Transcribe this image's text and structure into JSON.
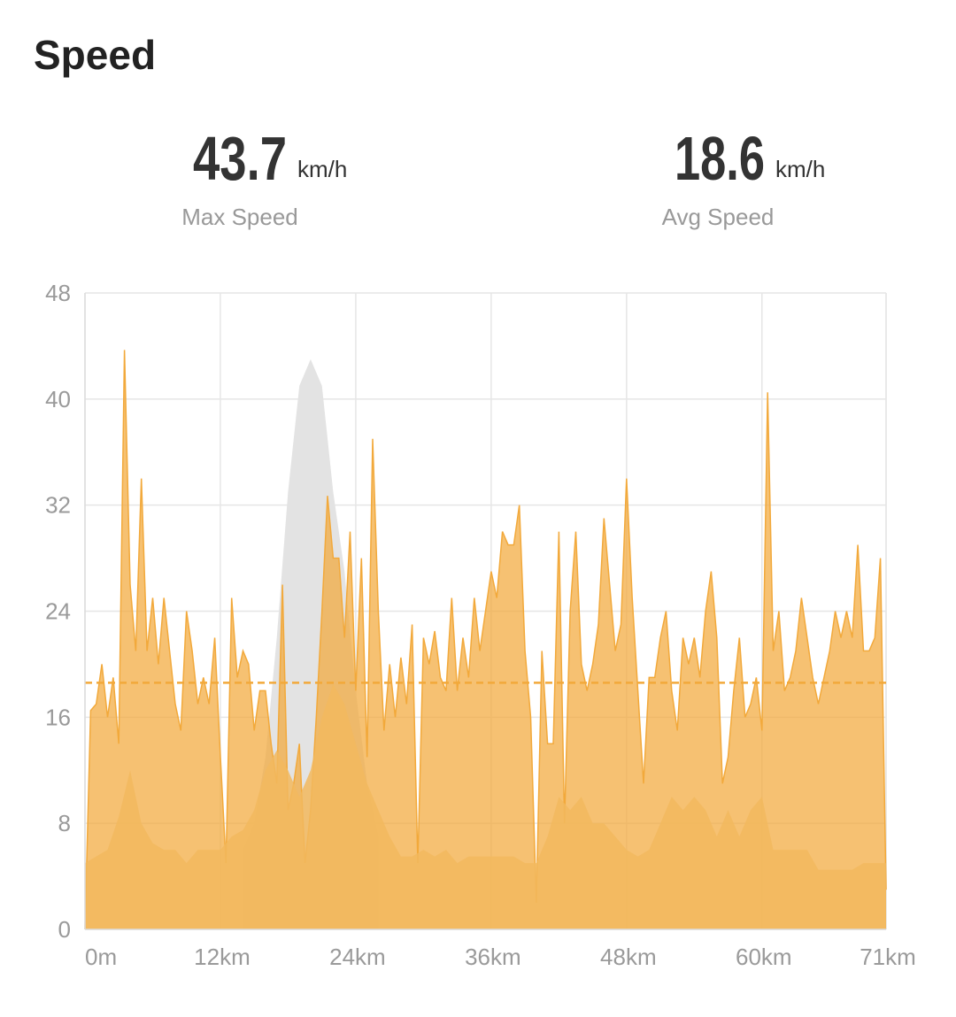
{
  "title": "Speed",
  "stats": [
    {
      "value": 43.7,
      "unit": "km/h",
      "label": "Max Speed"
    },
    {
      "value": 18.6,
      "unit": "km/h",
      "label": "Avg Speed"
    }
  ],
  "chart_data": {
    "type": "area",
    "xlim": [
      0,
      71
    ],
    "xticks": [
      {
        "value": 0,
        "label": "0m"
      },
      {
        "value": 12,
        "label": "12km"
      },
      {
        "value": 24,
        "label": "24km"
      },
      {
        "value": 36,
        "label": "36km"
      },
      {
        "value": 48,
        "label": "48km"
      },
      {
        "value": 60,
        "label": "60km"
      },
      {
        "value": 71,
        "label": "71km"
      }
    ],
    "ylim": [
      0,
      48
    ],
    "yticks": [
      0,
      8,
      16,
      24,
      32,
      40,
      48
    ],
    "grid": true,
    "series": [
      {
        "color": "#e3e3e3",
        "x": [
          14,
          15,
          16,
          17,
          18,
          19,
          20,
          21,
          22,
          23,
          24,
          25,
          26
        ],
        "values": [
          6,
          8,
          13,
          22,
          33,
          41,
          43,
          41,
          33,
          27,
          18,
          11,
          7
        ]
      },
      {
        "color": "#f2a93b",
        "x": [
          0,
          0.5,
          1,
          1.5,
          2,
          2.5,
          3,
          3.5,
          4,
          4.5,
          5,
          5.5,
          6,
          6.5,
          7,
          7.5,
          8,
          8.5,
          9,
          9.5,
          10,
          10.5,
          11,
          11.5,
          12,
          12.5,
          13,
          13.5,
          14,
          14.5,
          15,
          15.5,
          16,
          16.5,
          17,
          17.5,
          18,
          18.5,
          19,
          19.5,
          20,
          20.5,
          21,
          21.5,
          22,
          22.5,
          23,
          23.5,
          24,
          24.5,
          25,
          25.5,
          26,
          26.5,
          27,
          27.5,
          28,
          28.5,
          29,
          29.5,
          30,
          30.5,
          31,
          31.5,
          32,
          32.5,
          33,
          33.5,
          34,
          34.5,
          35,
          35.5,
          36,
          36.5,
          37,
          37.5,
          38,
          38.5,
          39,
          39.5,
          40,
          40.5,
          41,
          41.5,
          42,
          42.5,
          43,
          43.5,
          44,
          44.5,
          45,
          45.5,
          46,
          46.5,
          47,
          47.5,
          48,
          48.5,
          49,
          49.5,
          50,
          50.5,
          51,
          51.5,
          52,
          52.5,
          53,
          53.5,
          54,
          54.5,
          55,
          55.5,
          56,
          56.5,
          57,
          57.5,
          58,
          58.5,
          59,
          59.5,
          60,
          60.5,
          61,
          61.5,
          62,
          62.5,
          63,
          63.5,
          64,
          64.5,
          65,
          65.5,
          66,
          66.5,
          67,
          67.5,
          68,
          68.5,
          69,
          69.5,
          70,
          70.5,
          71
        ],
        "values": [
          0,
          16.5,
          17,
          20,
          16,
          19,
          14,
          43.7,
          26,
          21,
          34,
          21,
          25,
          20,
          25,
          21,
          17,
          15,
          24,
          21,
          17,
          19,
          17,
          22,
          13,
          5,
          25,
          19,
          21,
          20,
          15,
          18,
          18,
          14,
          11,
          26,
          9,
          11,
          14,
          5,
          9,
          16,
          24,
          32.7,
          28,
          28,
          22,
          30,
          18,
          28,
          13,
          37,
          24,
          15,
          20,
          16,
          20.5,
          17,
          23,
          5,
          22,
          20,
          22.5,
          19,
          18,
          25,
          18,
          22,
          19,
          25,
          21,
          24,
          27,
          25,
          30,
          29,
          29,
          32,
          21,
          16,
          2,
          21,
          14,
          14,
          30,
          8,
          24,
          30,
          20,
          18,
          20,
          23,
          31,
          26,
          21,
          23,
          34,
          25,
          18,
          11,
          19,
          19,
          22,
          24,
          18,
          15,
          22,
          20,
          22,
          19,
          24,
          27,
          22,
          11,
          13,
          18,
          22,
          16,
          17,
          19,
          15,
          40.5,
          21,
          24,
          18,
          19,
          21,
          25,
          22,
          19,
          17,
          19,
          21,
          24,
          22,
          24,
          22,
          29,
          21,
          21,
          22,
          28,
          3
        ]
      },
      {
        "color": "#f2b95e",
        "x": [
          0,
          1,
          2,
          3,
          4,
          5,
          6,
          7,
          8,
          9,
          10,
          11,
          12,
          13,
          14,
          15,
          16,
          17,
          18,
          19,
          20,
          21,
          22,
          23,
          24,
          25,
          26,
          27,
          28,
          29,
          30,
          31,
          32,
          33,
          34,
          35,
          36,
          37,
          38,
          39,
          40,
          41,
          42,
          43,
          44,
          45,
          46,
          47,
          48,
          49,
          50,
          51,
          52,
          53,
          54,
          55,
          56,
          57,
          58,
          59,
          60,
          61,
          62,
          63,
          64,
          65,
          66,
          67,
          68,
          69,
          70,
          71
        ],
        "values": [
          5,
          5.5,
          6,
          8.5,
          12,
          8,
          6.5,
          6,
          6,
          5,
          6,
          6,
          6,
          7,
          7.5,
          9,
          12,
          13.5,
          12,
          10,
          12,
          16,
          18.5,
          17,
          14,
          11,
          9,
          7,
          5.5,
          5.5,
          6,
          5.5,
          6,
          5,
          5.5,
          5.5,
          5.5,
          5.5,
          5.5,
          5,
          5,
          7,
          10,
          9,
          10,
          8,
          8,
          7,
          6,
          5.5,
          6,
          8,
          10,
          9,
          10,
          9,
          7,
          9,
          7,
          9,
          10,
          6,
          6,
          6,
          6,
          4.5,
          4.5,
          4.5,
          4.5,
          5,
          5,
          5
        ]
      }
    ]
  }
}
